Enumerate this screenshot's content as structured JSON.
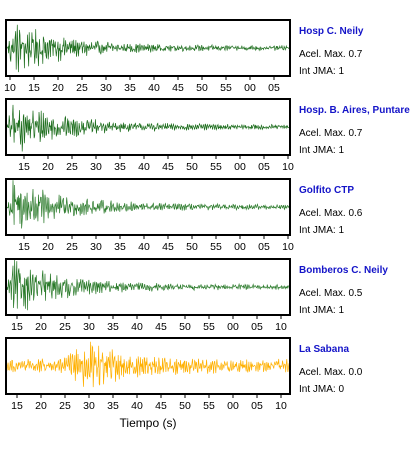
{
  "chart_data": {
    "type": "line",
    "xlabel": "Tiempo (s)",
    "panels": [
      {
        "name": "Hosp C. Neily",
        "accel_text": "Acel. Max. 0.7",
        "jma_text": "Int JMA: 1",
        "color": "#1e6e1e",
        "amplitude": 0.7,
        "onset": 0.0,
        "ticks": [
          "10",
          "15",
          "20",
          "25",
          "30",
          "35",
          "40",
          "45",
          "50",
          "55",
          "00",
          "05"
        ]
      },
      {
        "name": "Hosp. B. Aires, Puntare",
        "accel_text": "Acel. Max. 0.7",
        "jma_text": "Int JMA: 1",
        "color": "#1e6e1e",
        "amplitude": 0.7,
        "onset": 0.0,
        "ticks": [
          "15",
          "20",
          "25",
          "30",
          "35",
          "40",
          "45",
          "50",
          "55",
          "00",
          "05",
          "10"
        ]
      },
      {
        "name": "Golfito CTP",
        "accel_text": "Acel. Max. 0.6",
        "jma_text": "Int JMA: 1",
        "color": "#2a7a2a",
        "amplitude": 0.6,
        "onset": 0.0,
        "ticks": [
          "15",
          "20",
          "25",
          "30",
          "35",
          "40",
          "45",
          "50",
          "55",
          "00",
          "05",
          "10"
        ]
      },
      {
        "name": "Bomberos C. Neily",
        "accel_text": "Acel. Max. 0.5",
        "jma_text": "Int JMA: 1",
        "color": "#2a7a2a",
        "amplitude": 0.5,
        "onset": 0.0,
        "ticks": [
          "15",
          "20",
          "25",
          "30",
          "35",
          "40",
          "45",
          "50",
          "55",
          "00",
          "05",
          "10"
        ]
      },
      {
        "name": "La Sabana",
        "accel_text": "Acel. Max. 0.0",
        "jma_text": "Int JMA: 0",
        "color": "#ffb000",
        "amplitude": 0.0,
        "onset": 0.35,
        "ticks": [
          "15",
          "20",
          "25",
          "30",
          "35",
          "40",
          "45",
          "50",
          "55",
          "00",
          "05",
          "10"
        ]
      }
    ]
  }
}
